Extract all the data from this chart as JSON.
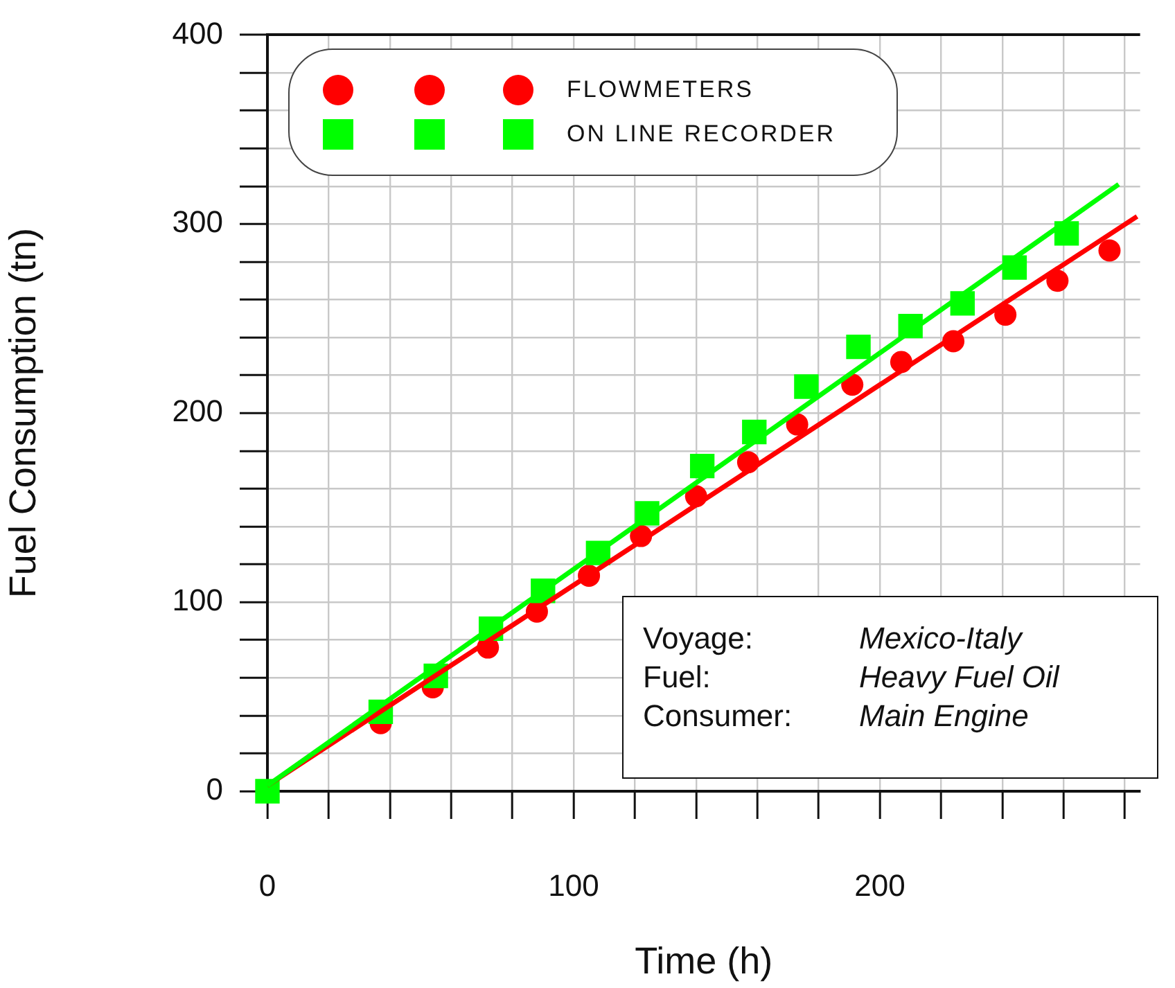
{
  "chart_data": {
    "type": "scatter",
    "xlabel": "Time (h)",
    "ylabel": "Fuel Consumption (tn)",
    "xlim": [
      0,
      285
    ],
    "ylim": [
      0,
      400
    ],
    "xticks": [
      0,
      {
        "value": 20,
        "label": null
      },
      {
        "value": 40,
        "label": null
      },
      {
        "value": 60,
        "label": null
      },
      {
        "value": 80,
        "label": null
      },
      100,
      {
        "value": 120,
        "label": null
      },
      {
        "value": 140,
        "label": null
      },
      {
        "value": 160,
        "label": null
      },
      {
        "value": 180,
        "label": null
      },
      200,
      {
        "value": 220,
        "label": null
      },
      {
        "value": 240,
        "label": null
      },
      {
        "value": 260,
        "label": null
      },
      {
        "value": 280,
        "label": null
      }
    ],
    "yticks": [
      0,
      {
        "value": 20,
        "label": null
      },
      {
        "value": 40,
        "label": null
      },
      {
        "value": 60,
        "label": null
      },
      {
        "value": 80,
        "label": null
      },
      100,
      {
        "value": 120,
        "label": null
      },
      {
        "value": 140,
        "label": null
      },
      {
        "value": 160,
        "label": null
      },
      {
        "value": 180,
        "label": null
      },
      200,
      {
        "value": 220,
        "label": null
      },
      {
        "value": 240,
        "label": null
      },
      {
        "value": 260,
        "label": null
      },
      {
        "value": 280,
        "label": null
      },
      300,
      {
        "value": 320,
        "label": null
      },
      {
        "value": 340,
        "label": null
      },
      {
        "value": 360,
        "label": null
      },
      {
        "value": 380,
        "label": null
      },
      400
    ],
    "grid": true,
    "legend": "top left",
    "series": [
      {
        "name": "FLOWMETERS",
        "marker": "circle",
        "color": "#ff0000",
        "x": [
          37,
          54,
          72,
          88,
          105,
          122,
          140,
          157,
          173,
          191,
          207,
          224,
          241,
          258,
          275
        ],
        "values": [
          36,
          55,
          76,
          95,
          114,
          135,
          156,
          174,
          194,
          215,
          227,
          238,
          252,
          270,
          286
        ]
      },
      {
        "name": "ON LINE RECORDER",
        "marker": "square",
        "color": "#00ff00",
        "x": [
          0,
          37,
          55,
          73,
          90,
          108,
          124,
          142,
          159,
          176,
          193,
          210,
          227,
          244,
          261
        ],
        "values": [
          0,
          42,
          61,
          86,
          106,
          126,
          147,
          172,
          190,
          214,
          235,
          246,
          258,
          277,
          295
        ]
      },
      {
        "type": "line",
        "marker": "none",
        "color": "#00ff00",
        "x": [
          0,
          278
        ],
        "values": [
          3,
          321
        ]
      },
      {
        "type": "line",
        "marker": "none",
        "color": "#ff0000",
        "x": [
          0,
          284
        ],
        "values": [
          3,
          304
        ]
      }
    ],
    "annotations": [
      "Voyage:",
      "Mexico-Italy",
      "Fuel:",
      "Heavy Fuel Oil",
      "Consumer:",
      "Main Engine"
    ]
  }
}
